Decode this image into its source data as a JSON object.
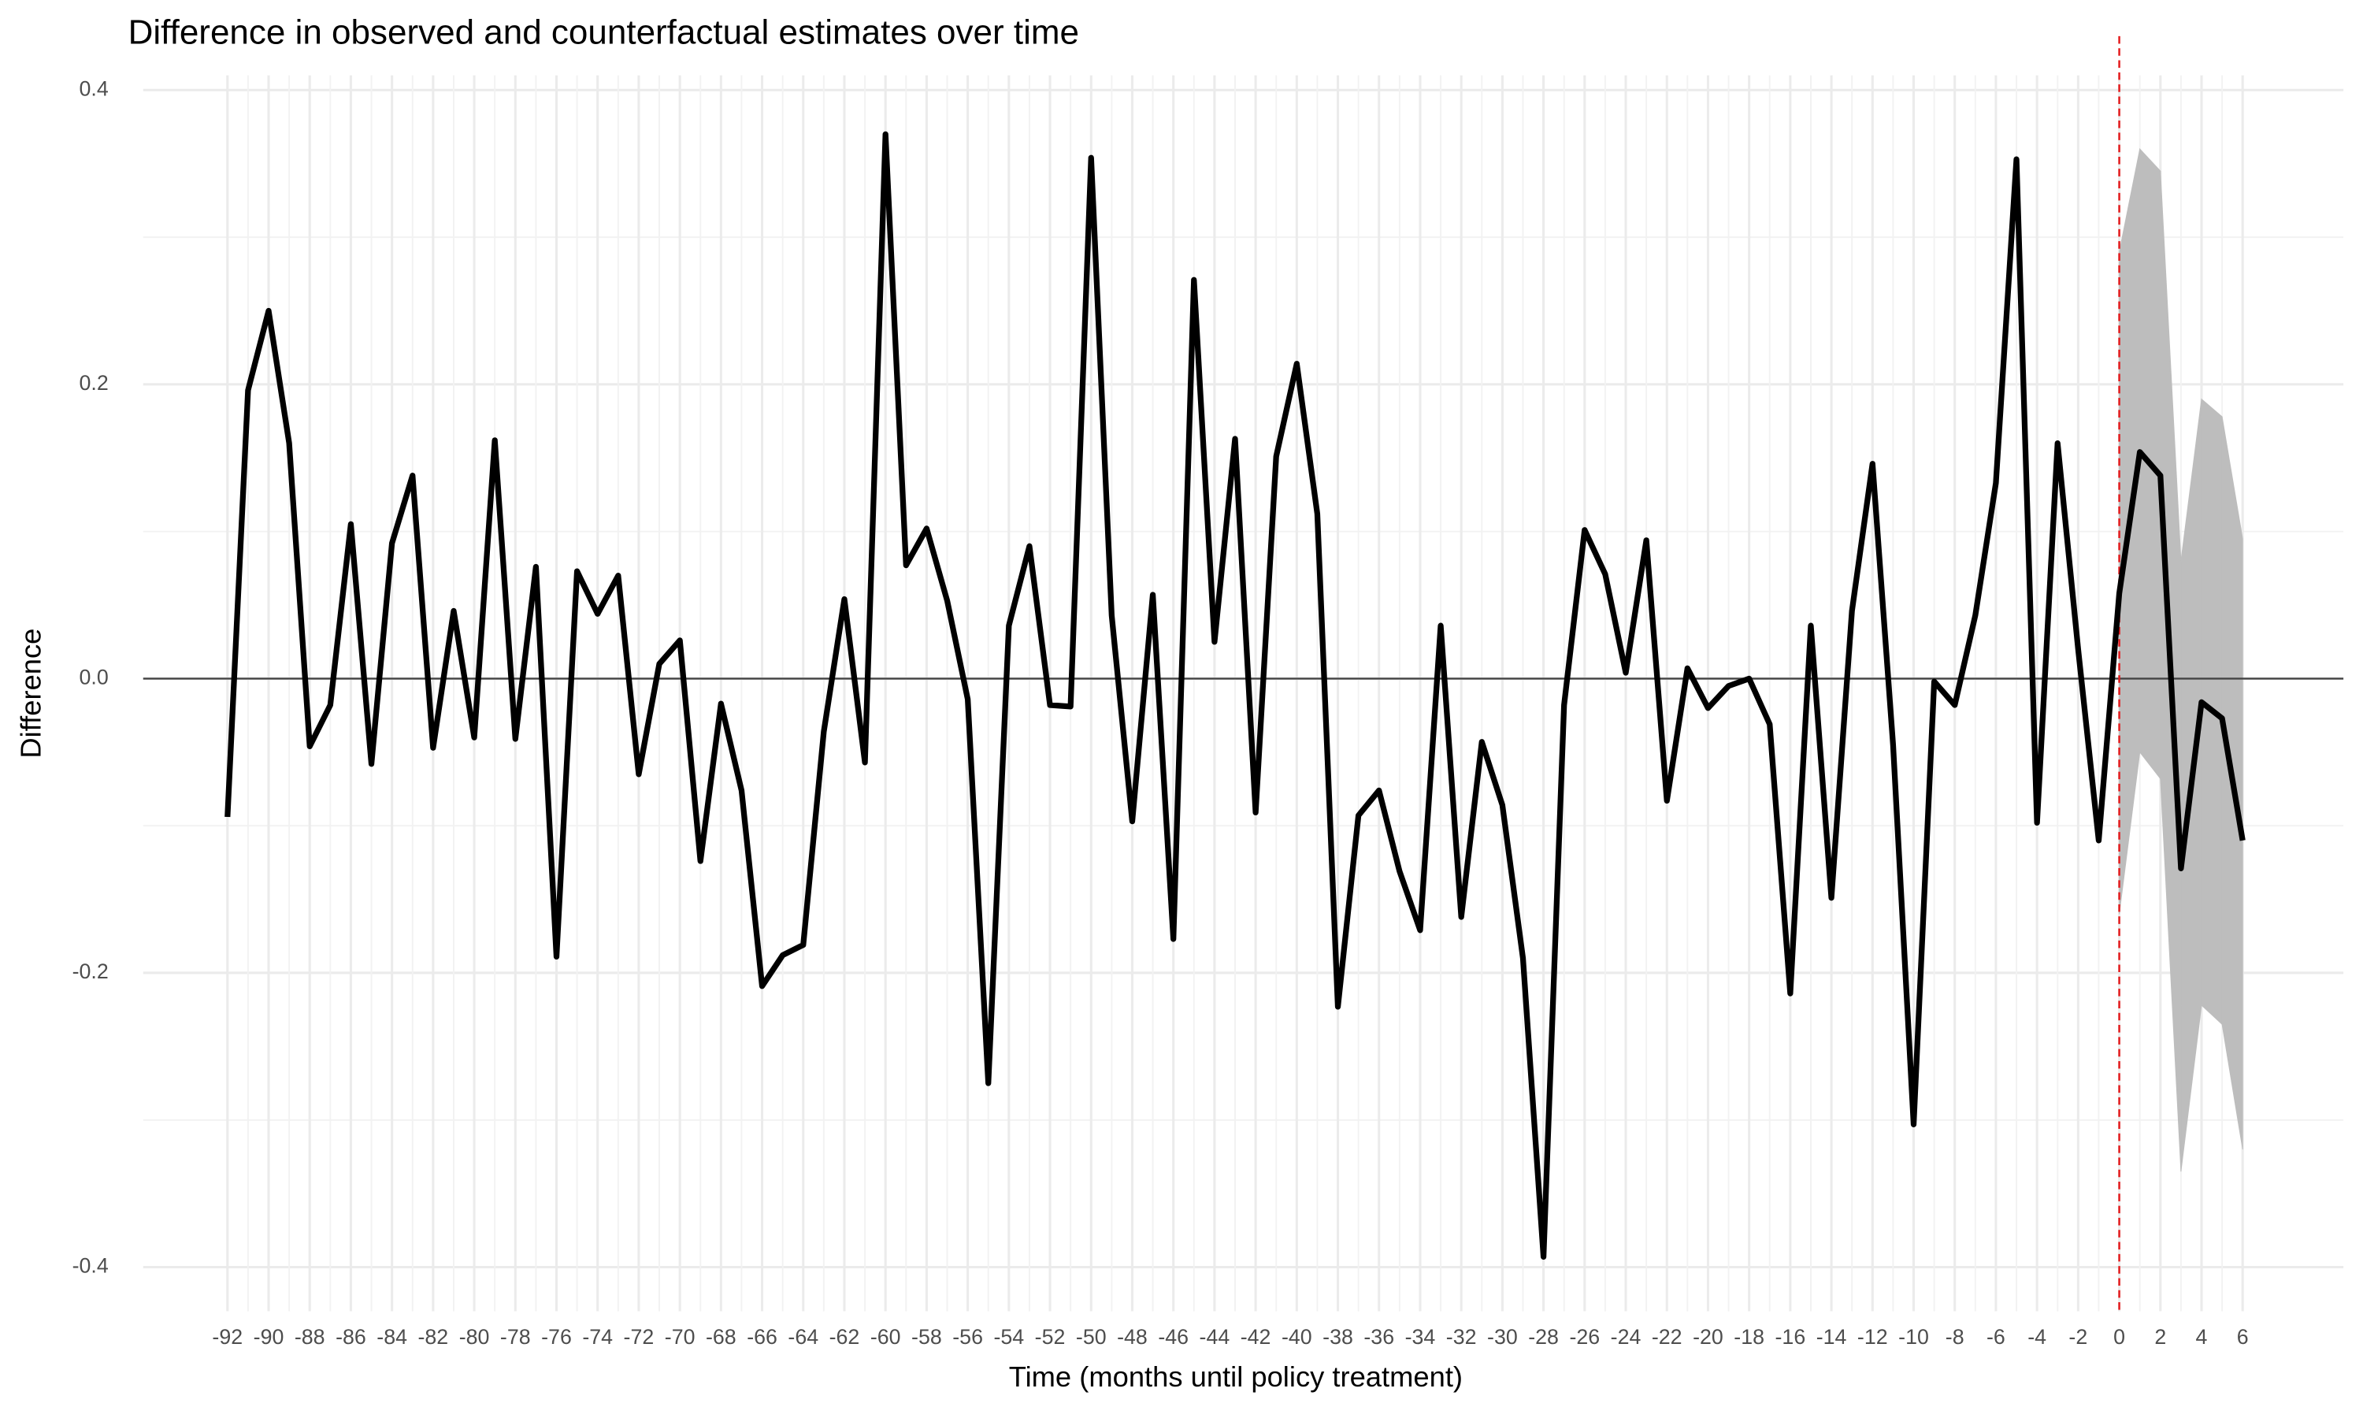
{
  "chart_data": {
    "type": "line",
    "title": "Difference in observed and counterfactual estimates over time",
    "xlabel": "Time (months until policy treatment)",
    "ylabel": "Difference",
    "color": "#000000",
    "x": [
      -92,
      -91,
      -90,
      -89,
      -88,
      -87,
      -86,
      -85,
      -84,
      -83,
      -82,
      -81,
      -80,
      -79,
      -78,
      -77,
      -76,
      -75,
      -74,
      -73,
      -72,
      -71,
      -70,
      -69,
      -68,
      -67,
      -66,
      -65,
      -64,
      -63,
      -62,
      -61,
      -60,
      -59,
      -58,
      -57,
      -56,
      -55,
      -54,
      -53,
      -52,
      -51,
      -50,
      -49,
      -48,
      -47,
      -46,
      -45,
      -44,
      -43,
      -42,
      -41,
      -40,
      -39,
      -38,
      -37,
      -36,
      -35,
      -34,
      -33,
      -32,
      -31,
      -30,
      -29,
      -28,
      -27,
      -26,
      -25,
      -24,
      -23,
      -22,
      -21,
      -20,
      -19,
      -18,
      -17,
      -16,
      -15,
      -14,
      -13,
      -12,
      -11,
      -10,
      -9,
      -8,
      -7,
      -6,
      -5,
      -4,
      -3,
      -2,
      -1,
      0,
      1,
      2,
      3,
      4,
      5,
      6
    ],
    "values": [
      -0.094,
      0.196,
      0.25,
      0.16,
      -0.046,
      -0.018,
      0.105,
      -0.058,
      0.092,
      0.138,
      -0.047,
      0.046,
      -0.04,
      0.162,
      -0.041,
      0.076,
      -0.189,
      0.073,
      0.044,
      0.07,
      -0.065,
      0.01,
      0.026,
      -0.124,
      -0.017,
      -0.076,
      -0.209,
      -0.188,
      -0.181,
      -0.036,
      0.054,
      -0.057,
      0.37,
      0.077,
      0.102,
      0.053,
      -0.014,
      -0.275,
      0.036,
      0.09,
      -0.018,
      -0.019,
      0.354,
      0.043,
      -0.097,
      0.057,
      -0.177,
      0.271,
      0.025,
      0.163,
      -0.091,
      0.151,
      0.214,
      0.112,
      -0.223,
      -0.093,
      -0.076,
      -0.131,
      -0.171,
      0.036,
      -0.162,
      -0.043,
      -0.086,
      -0.19,
      -0.393,
      -0.018,
      0.101,
      0.071,
      0.004,
      0.094,
      -0.083,
      0.007,
      -0.02,
      -0.005,
      0.0,
      -0.031,
      -0.214,
      0.036,
      -0.149,
      0.046,
      0.146,
      -0.045,
      -0.303,
      -0.002,
      -0.018,
      0.043,
      0.133,
      0.353,
      -0.098,
      0.16,
      0.02,
      -0.11,
      0.058,
      0.154,
      0.138,
      -0.129,
      -0.016,
      -0.027,
      -0.11
    ],
    "ribbon": {
      "color": "#bdbdbd",
      "x": [
        0,
        1,
        2,
        3,
        4,
        5,
        6
      ],
      "lower": [
        -0.16,
        -0.05,
        -0.068,
        -0.335,
        -0.222,
        -0.235,
        -0.32
      ],
      "upper": [
        0.29,
        0.36,
        0.345,
        0.08,
        0.19,
        0.178,
        0.095
      ]
    },
    "xlim": [
      -96.1,
      10.9
    ],
    "ylim": [
      -0.43,
      0.41
    ],
    "xticks": [
      -92,
      -90,
      -88,
      -86,
      -84,
      -82,
      -80,
      -78,
      -76,
      -74,
      -72,
      -70,
      -68,
      -66,
      -64,
      -62,
      -60,
      -58,
      -56,
      -54,
      -52,
      -50,
      -48,
      -46,
      -44,
      -42,
      -40,
      -38,
      -36,
      -34,
      -32,
      -30,
      -28,
      -26,
      -24,
      -22,
      -20,
      -18,
      -16,
      -14,
      -12,
      -10,
      -8,
      -6,
      -4,
      -2,
      0,
      2,
      4,
      6
    ],
    "yticks": [
      -0.4,
      -0.2,
      {
        "value": 0,
        "label": "0.0"
      },
      0.2,
      0.4
    ],
    "grid": true,
    "hline": {
      "value": 0,
      "color": "#444444"
    },
    "vline": {
      "value": 0,
      "color": "#e41a1c"
    }
  }
}
